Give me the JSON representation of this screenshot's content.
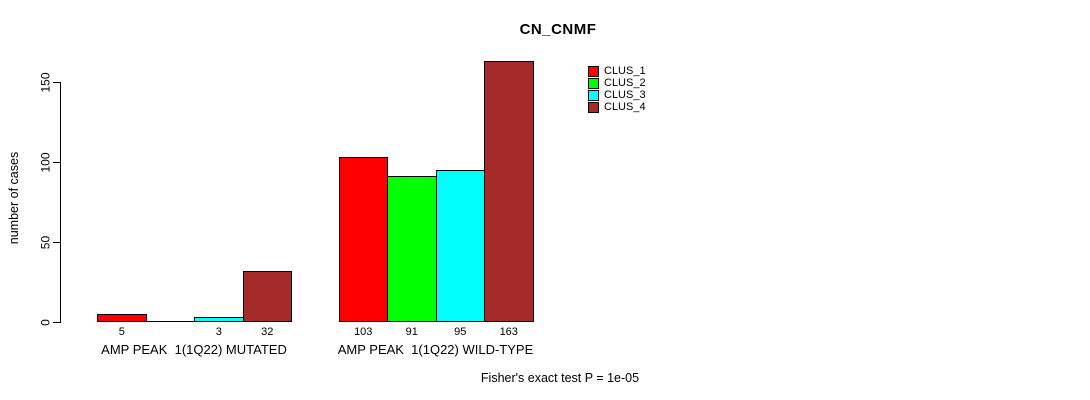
{
  "chart_data": {
    "type": "bar",
    "title": "CN_CNMF",
    "xlabel": "",
    "ylabel": "number of cases",
    "ylim": [
      0,
      163
    ],
    "yticks": [
      0,
      50,
      100,
      150
    ],
    "grid": false,
    "legend_position": "top-right",
    "show_zero_value_labels": false,
    "categories": [
      "AMP PEAK  1(1Q22) MUTATED",
      "AMP PEAK  1(1Q22) WILD-TYPE"
    ],
    "series": [
      {
        "name": "CLUS_1",
        "color": "#ff0000",
        "values": [
          5,
          103
        ]
      },
      {
        "name": "CLUS_2",
        "color": "#00ff00",
        "values": [
          0,
          91
        ]
      },
      {
        "name": "CLUS_3",
        "color": "#00ffff",
        "values": [
          3,
          95
        ]
      },
      {
        "name": "CLUS_4",
        "color": "#a52a2a",
        "values": [
          32,
          163
        ]
      }
    ],
    "annotation": "Fisher's exact test P = 1e-05"
  },
  "colors": {
    "background": "#ffffff",
    "axis": "#000000",
    "bar_outline": "#000000"
  }
}
